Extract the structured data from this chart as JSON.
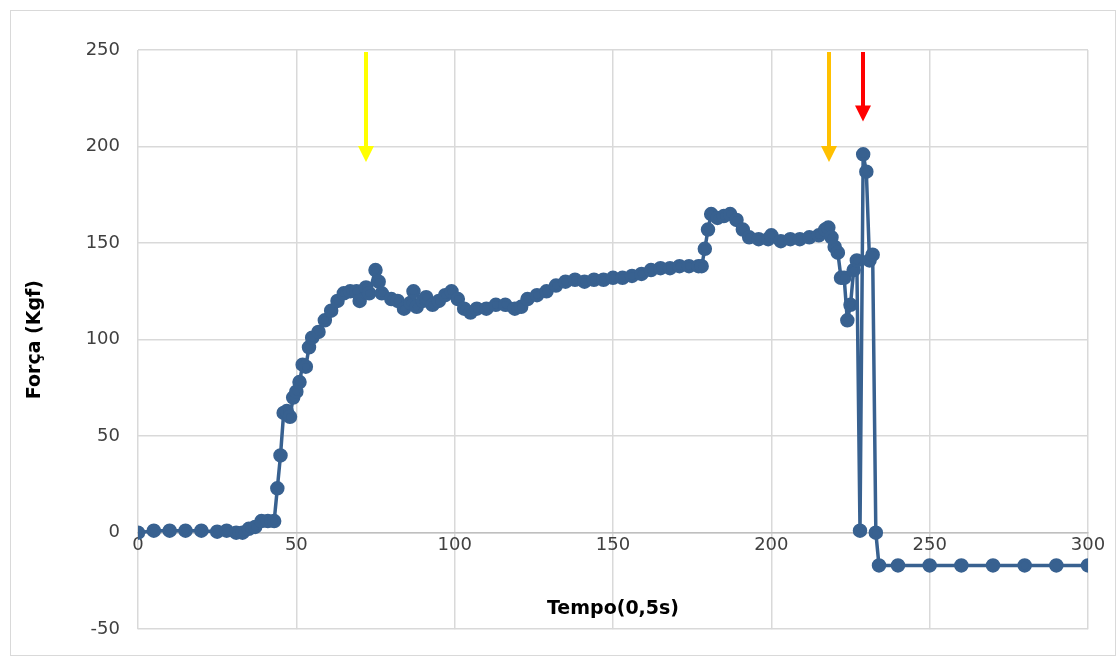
{
  "chart_data": {
    "type": "line",
    "xlabel": "Tempo(0,5s)",
    "ylabel": "Força (Kgf)",
    "xlim": [
      0,
      300
    ],
    "xticks": [
      0,
      50,
      100,
      150,
      200,
      250,
      300
    ],
    "ylim": [
      -50,
      250
    ],
    "yticks": [
      -50,
      0,
      50,
      100,
      150,
      200,
      250
    ],
    "grid": true,
    "legend": false,
    "marker": "circle",
    "line_style": "solid",
    "series": [
      {
        "color": "#386190",
        "x": [
          0,
          5,
          10,
          15,
          20,
          25,
          28,
          31,
          33,
          35,
          37,
          39,
          41,
          43,
          44,
          45,
          46,
          47,
          48,
          49,
          50,
          51,
          52,
          53,
          54,
          55,
          57,
          59,
          61,
          63,
          65,
          67,
          69,
          70,
          72,
          73,
          75,
          76,
          77,
          80,
          82,
          84,
          86,
          87,
          88,
          90,
          91,
          93,
          95,
          97,
          99,
          101,
          103,
          105,
          107,
          110,
          113,
          116,
          119,
          121,
          123,
          126,
          129,
          132,
          135,
          138,
          141,
          144,
          147,
          150,
          153,
          156,
          159,
          162,
          165,
          168,
          171,
          174,
          177,
          178,
          179,
          180,
          181,
          183,
          185,
          187,
          189,
          191,
          193,
          196,
          199,
          200,
          203,
          206,
          209,
          212,
          215,
          217,
          218,
          219,
          220,
          221,
          222,
          223,
          224,
          225,
          226,
          227,
          228,
          229,
          230,
          231,
          232,
          233,
          234,
          240,
          250,
          260,
          270,
          280,
          290,
          300
        ],
        "values": [
          0,
          1,
          1,
          1,
          1,
          0.5,
          1,
          0,
          0,
          2,
          3,
          6,
          6,
          6,
          23,
          40,
          62,
          63,
          60,
          70,
          73,
          78,
          87,
          86,
          96,
          101,
          104,
          110,
          115,
          120,
          124,
          125,
          125,
          120,
          127,
          124,
          136,
          130,
          124,
          121,
          120,
          116,
          119,
          125,
          117,
          120,
          122,
          118,
          120,
          123,
          125,
          121,
          116,
          114,
          116,
          116,
          118,
          118,
          116,
          117,
          121,
          123,
          125,
          128,
          130,
          131,
          130,
          131,
          131,
          132,
          132,
          133,
          134,
          136,
          137,
          137,
          138,
          138,
          138,
          138,
          147,
          157,
          165,
          163,
          164,
          165,
          162,
          157,
          153,
          152,
          152,
          154,
          151,
          152,
          152,
          153,
          154,
          157,
          158,
          153,
          148,
          145,
          132,
          132,
          110,
          118,
          136,
          141,
          1,
          196,
          187,
          141,
          144,
          0,
          -17,
          -17,
          -17,
          -17,
          -17,
          -17,
          -17,
          -17
        ]
      }
    ]
  }
}
